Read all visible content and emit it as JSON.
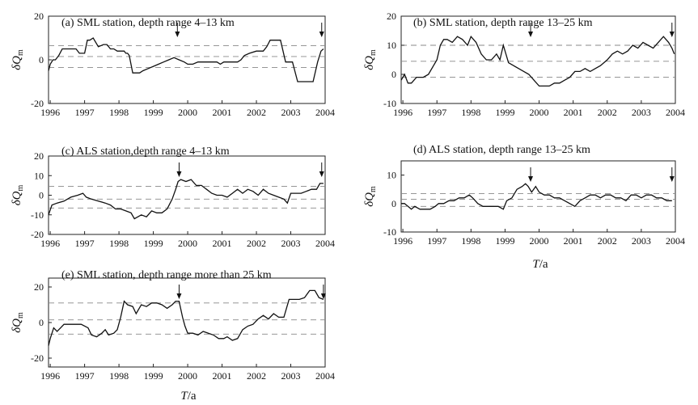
{
  "xlabel": {
    "symbol": "T",
    "rest": "/a"
  },
  "chart_data": [
    {
      "type": "line",
      "title": "(a)  SML station, depth range 4–13 km",
      "ylabel_symbol": "δQ",
      "ylabel_sub": "m",
      "xlim": [
        1995.95,
        2004.0
      ],
      "ylim": [
        -20,
        20
      ],
      "xticks": [
        1996,
        1997,
        1998,
        1999,
        2000,
        2001,
        2002,
        2003,
        2004
      ],
      "yticks": [
        -20,
        0,
        20
      ],
      "ref_lines": [
        6.5,
        1.5,
        -3.5
      ],
      "arrows": [
        1999.7,
        2003.9
      ],
      "x": [
        1995.95,
        1996.0,
        1996.08,
        1996.15,
        1996.25,
        1996.35,
        1996.45,
        1996.6,
        1996.75,
        1996.85,
        1996.93,
        1997.0,
        1997.08,
        1997.15,
        1997.25,
        1997.4,
        1997.55,
        1997.65,
        1997.75,
        1997.85,
        1997.95,
        1998.05,
        1998.15,
        1998.2,
        1998.25,
        1998.3,
        1998.4,
        1998.5,
        1998.6,
        1998.7,
        1998.85,
        1999.0,
        1999.15,
        1999.3,
        1999.45,
        1999.6,
        1999.75,
        1999.9,
        2000.0,
        2000.15,
        2000.3,
        2000.5,
        2000.7,
        2000.85,
        2000.95,
        2001.05,
        2001.15,
        2001.3,
        2001.45,
        2001.55,
        2001.65,
        2001.8,
        2002.0,
        2002.1,
        2002.2,
        2002.3,
        2002.4,
        2002.5,
        2002.7,
        2002.85,
        2002.95,
        2003.05,
        2003.2,
        2003.35,
        2003.5,
        2003.65,
        2003.78,
        2003.88,
        2003.95
      ],
      "y": [
        -5,
        -2,
        0,
        0,
        2,
        5,
        5,
        5,
        5,
        3,
        3,
        3,
        9,
        9,
        10,
        6,
        7,
        7,
        5,
        5,
        4,
        4,
        4,
        3,
        3,
        2,
        -6,
        -6,
        -6,
        -5,
        -4,
        -3,
        -2,
        -1,
        0,
        1,
        0,
        -1,
        -2,
        -2,
        -1,
        -1,
        -1,
        -1,
        -2,
        -1,
        -1,
        -1,
        -1,
        0,
        2,
        3,
        4,
        4,
        4,
        6,
        9,
        9,
        9,
        -1,
        -1,
        -1,
        -10,
        -10,
        -10,
        -10,
        -1,
        4,
        5
      ]
    },
    {
      "type": "line",
      "title": "(b)  SML station, depth range 13–25 km",
      "ylabel_symbol": "δQ",
      "ylabel_sub": "m",
      "xlim": [
        1995.95,
        2004.0
      ],
      "ylim": [
        -10,
        20
      ],
      "xticks": [
        1996,
        1997,
        1998,
        1999,
        2000,
        2001,
        2002,
        2003,
        2004
      ],
      "yticks": [
        -10,
        0,
        10,
        20
      ],
      "ref_lines": [
        10,
        4.5,
        -1
      ],
      "arrows": [
        1999.75,
        2003.9
      ],
      "x": [
        1995.95,
        1996.05,
        1996.15,
        1996.25,
        1996.4,
        1996.6,
        1996.75,
        1996.9,
        1997.0,
        1997.1,
        1997.2,
        1997.3,
        1997.45,
        1997.6,
        1997.75,
        1997.9,
        1998.0,
        1998.15,
        1998.3,
        1998.45,
        1998.6,
        1998.75,
        1998.85,
        1998.95,
        1999.1,
        1999.25,
        1999.4,
        1999.55,
        1999.7,
        1999.85,
        2000.0,
        2000.15,
        2000.3,
        2000.45,
        2000.6,
        2000.75,
        2000.9,
        2001.05,
        2001.2,
        2001.35,
        2001.5,
        2001.65,
        2001.8,
        2002.0,
        2002.15,
        2002.3,
        2002.45,
        2002.6,
        2002.75,
        2002.9,
        2003.05,
        2003.2,
        2003.35,
        2003.5,
        2003.65,
        2003.8,
        2003.9,
        2003.97
      ],
      "y": [
        -2,
        0,
        -3,
        -3,
        -1,
        -1,
        0,
        3,
        5,
        10,
        12,
        12,
        11,
        13,
        12,
        10,
        13,
        11,
        7,
        5,
        5,
        7,
        5,
        10,
        4,
        3,
        2,
        1,
        0,
        -2,
        -4,
        -4,
        -4,
        -3,
        -3,
        -2,
        -1,
        1,
        1,
        2,
        1,
        2,
        3,
        5,
        7,
        8,
        7,
        8,
        10,
        9,
        11,
        10,
        9,
        11,
        13,
        11,
        9,
        7
      ]
    },
    {
      "type": "line",
      "title": "(c)  ALS station,depth range 4–13 km",
      "ylabel_symbol": "δQ",
      "ylabel_sub": "m",
      "xlim": [
        1995.95,
        2004.0
      ],
      "ylim": [
        -20,
        20
      ],
      "xticks": [
        1996,
        1997,
        1998,
        1999,
        2000,
        2001,
        2002,
        2003,
        2004
      ],
      "yticks": [
        -20,
        -10,
        0,
        10,
        20
      ],
      "ref_lines": [
        4.5,
        -2,
        -6.5
      ],
      "arrows": [
        1999.75,
        2003.9
      ],
      "x": [
        1995.95,
        1996.05,
        1996.2,
        1996.4,
        1996.6,
        1996.8,
        1996.95,
        1997.05,
        1997.2,
        1997.4,
        1997.6,
        1997.75,
        1997.9,
        1998.05,
        1998.2,
        1998.35,
        1998.45,
        1998.55,
        1998.65,
        1998.8,
        1998.95,
        1999.1,
        1999.25,
        1999.4,
        1999.55,
        1999.65,
        1999.72,
        1999.8,
        1999.95,
        2000.1,
        2000.25,
        2000.4,
        2000.55,
        2000.7,
        2000.85,
        2001.0,
        2001.15,
        2001.3,
        2001.45,
        2001.6,
        2001.75,
        2001.9,
        2002.05,
        2002.2,
        2002.35,
        2002.5,
        2002.65,
        2002.8,
        2002.9,
        2003.0,
        2003.15,
        2003.3,
        2003.45,
        2003.6,
        2003.75,
        2003.85,
        2003.95
      ],
      "y": [
        -10,
        -5,
        -4,
        -3,
        -1,
        0,
        1,
        -1,
        -2,
        -3,
        -4,
        -5,
        -7,
        -7,
        -8,
        -9,
        -12,
        -11,
        -10,
        -11,
        -8,
        -9,
        -9,
        -7,
        -2,
        3,
        7,
        8,
        7,
        8,
        5,
        5,
        3,
        1,
        0,
        0,
        -1,
        1,
        3,
        1,
        3,
        2,
        0,
        3,
        1,
        0,
        -1,
        -2,
        -4,
        1,
        1,
        1,
        2,
        3,
        3,
        6,
        6
      ]
    },
    {
      "type": "line",
      "title": "(d)  ALS station, depth range 13–25 km",
      "ylabel_symbol": "δQ",
      "ylabel_sub": "m",
      "xlim": [
        1995.95,
        2004.0
      ],
      "ylim": [
        -10,
        15
      ],
      "xticks": [
        1996,
        1997,
        1998,
        1999,
        2000,
        2001,
        2002,
        2003,
        2004
      ],
      "yticks": [
        -10,
        0,
        10
      ],
      "ref_lines": [
        3.5,
        1.5,
        -1
      ],
      "arrows": [
        1999.75,
        2003.9
      ],
      "x": [
        1995.95,
        1996.05,
        1996.15,
        1996.25,
        1996.35,
        1996.5,
        1996.65,
        1996.8,
        1996.95,
        1997.05,
        1997.2,
        1997.35,
        1997.5,
        1997.65,
        1997.8,
        1997.95,
        1998.05,
        1998.2,
        1998.35,
        1998.5,
        1998.65,
        1998.8,
        1998.95,
        1999.05,
        1999.2,
        1999.35,
        1999.5,
        1999.6,
        1999.68,
        1999.78,
        1999.9,
        2000.0,
        2000.15,
        2000.3,
        2000.45,
        2000.6,
        2000.75,
        2000.9,
        2001.05,
        2001.2,
        2001.35,
        2001.5,
        2001.65,
        2001.8,
        2001.95,
        2002.1,
        2002.25,
        2002.4,
        2002.55,
        2002.7,
        2002.85,
        2003.0,
        2003.15,
        2003.3,
        2003.45,
        2003.6,
        2003.75,
        2003.9
      ],
      "y": [
        0,
        0,
        -1,
        -2,
        -1,
        -2,
        -2,
        -2,
        -1,
        0,
        0,
        1,
        1,
        2,
        2,
        3,
        2,
        0,
        -1,
        -1,
        -1,
        -1,
        -2,
        1,
        2,
        5,
        6,
        7,
        6,
        4,
        6,
        4,
        3,
        3,
        2,
        2,
        1,
        0,
        -1,
        1,
        2,
        3,
        3,
        2,
        3,
        3,
        2,
        2,
        1,
        3,
        3,
        2,
        3,
        3,
        2,
        2,
        1,
        1
      ]
    },
    {
      "type": "line",
      "title": "(e)  SML station, depth range more than 25 km",
      "ylabel_symbol": "δQ",
      "ylabel_sub": "m",
      "xlim": [
        1995.95,
        2004.0
      ],
      "ylim": [
        -25,
        25
      ],
      "xticks": [
        1996,
        1997,
        1998,
        1999,
        2000,
        2001,
        2002,
        2003,
        2004
      ],
      "yticks": [
        -20,
        0,
        20
      ],
      "ref_lines": [
        11,
        1.5,
        -6.5
      ],
      "arrows": [
        1999.75,
        2003.95
      ],
      "x": [
        1995.95,
        1996.0,
        1996.1,
        1996.2,
        1996.3,
        1996.4,
        1996.5,
        1996.7,
        1996.9,
        1997.1,
        1997.2,
        1997.35,
        1997.5,
        1997.6,
        1997.7,
        1997.85,
        1997.95,
        1998.05,
        1998.15,
        1998.25,
        1998.4,
        1998.5,
        1998.65,
        1998.8,
        1998.95,
        1999.1,
        1999.25,
        1999.4,
        1999.55,
        1999.65,
        1999.75,
        1999.85,
        1999.92,
        2000.0,
        2000.15,
        2000.3,
        2000.45,
        2000.6,
        2000.75,
        2000.9,
        2001.05,
        2001.15,
        2001.3,
        2001.45,
        2001.6,
        2001.75,
        2001.9,
        2002.05,
        2002.2,
        2002.35,
        2002.5,
        2002.65,
        2002.8,
        2002.95,
        2003.1,
        2003.25,
        2003.4,
        2003.55,
        2003.7,
        2003.82,
        2003.95
      ],
      "y": [
        -13,
        -9,
        -3,
        -5,
        -3,
        -1,
        -1,
        -1,
        -1,
        -3,
        -7,
        -8,
        -6,
        -4,
        -7,
        -6,
        -4,
        3,
        12,
        10,
        9,
        5,
        10,
        9,
        11,
        11,
        10,
        8,
        10,
        12,
        12,
        3,
        -2,
        -6,
        -6,
        -7,
        -5,
        -6,
        -7,
        -9,
        -9,
        -8,
        -10,
        -9,
        -4,
        -2,
        -1,
        2,
        4,
        2,
        5,
        3,
        3,
        13,
        13,
        13,
        14,
        18,
        18,
        14,
        13
      ]
    }
  ]
}
